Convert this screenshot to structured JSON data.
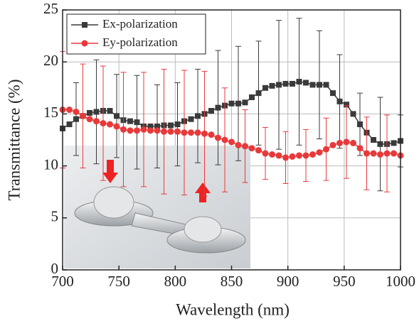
{
  "chart_data": {
    "type": "line",
    "x_label": "Wavelength (nm)",
    "y_label": "Transmittance (%)",
    "x": [
      700,
      706,
      712,
      718,
      724,
      730,
      736,
      742,
      748,
      754,
      760,
      766,
      772,
      778,
      784,
      790,
      796,
      802,
      808,
      814,
      820,
      826,
      832,
      838,
      844,
      850,
      856,
      862,
      868,
      874,
      880,
      886,
      892,
      898,
      904,
      910,
      916,
      922,
      928,
      934,
      940,
      946,
      952,
      958,
      964,
      970,
      976,
      982,
      988,
      994,
      1000
    ],
    "series": [
      {
        "name": "Ex-polarization",
        "color": "#3a3a3a",
        "marker": "square",
        "values": [
          13.6,
          14.0,
          14.5,
          14.8,
          15.1,
          15.2,
          15.3,
          15.3,
          14.8,
          14.4,
          14.3,
          14.2,
          13.8,
          13.8,
          13.8,
          13.9,
          13.9,
          14.0,
          14.3,
          14.5,
          14.8,
          15.0,
          15.3,
          15.6,
          15.8,
          16.0,
          16.0,
          16.1,
          16.6,
          17.0,
          17.5,
          17.7,
          17.8,
          17.9,
          17.9,
          18.1,
          18.0,
          17.8,
          17.8,
          17.8,
          17.0,
          16.2,
          15.9,
          15.0,
          14.0,
          13.2,
          12.5,
          12.1,
          12.1,
          12.2,
          12.4
        ],
        "errors": [
          null,
          null,
          3.5,
          null,
          null,
          5,
          null,
          null,
          4,
          null,
          null,
          4.5,
          null,
          null,
          4,
          null,
          null,
          4,
          null,
          null,
          4.5,
          null,
          null,
          5.5,
          null,
          null,
          5.5,
          null,
          null,
          5,
          null,
          null,
          6.2,
          null,
          null,
          6.1,
          null,
          null,
          5.2,
          null,
          null,
          4.5,
          null,
          null,
          3,
          null,
          null,
          4.5,
          null,
          null,
          2.5
        ]
      },
      {
        "name": "Ey-polarization",
        "color": "#e8393a",
        "marker": "circle",
        "values": [
          15.4,
          15.4,
          15.2,
          14.8,
          14.5,
          14.3,
          14.1,
          14.0,
          13.8,
          13.5,
          13.4,
          13.4,
          13.5,
          13.4,
          13.4,
          13.3,
          13.3,
          13.3,
          13.2,
          13.2,
          13.2,
          13.1,
          13.0,
          12.7,
          12.5,
          12.3,
          12.0,
          11.9,
          11.7,
          11.5,
          11.2,
          11.1,
          11.0,
          10.8,
          10.9,
          11.0,
          11.0,
          11.1,
          11.3,
          11.6,
          12.0,
          12.2,
          12.3,
          12.2,
          11.7,
          11.2,
          11.2,
          11.1,
          11.2,
          11.2,
          11.0
        ],
        "errors": [
          5.6,
          null,
          null,
          5,
          null,
          null,
          5.5,
          null,
          null,
          5.5,
          null,
          null,
          5.5,
          null,
          null,
          6,
          null,
          null,
          6,
          null,
          null,
          6,
          null,
          null,
          5,
          null,
          null,
          3.5,
          null,
          null,
          2.5,
          null,
          null,
          2.5,
          null,
          null,
          2.5,
          null,
          null,
          3,
          null,
          null,
          3.5,
          null,
          null,
          3.5,
          null,
          null,
          3.7,
          null,
          null
        ]
      }
    ],
    "xlim": [
      700,
      1000
    ],
    "xticks": [
      700,
      750,
      800,
      850,
      900,
      950,
      1000
    ],
    "ylim": [
      0,
      25
    ],
    "yticks": [
      0,
      5,
      10,
      15,
      20,
      25
    ],
    "grid": true,
    "legend": "upper left"
  }
}
